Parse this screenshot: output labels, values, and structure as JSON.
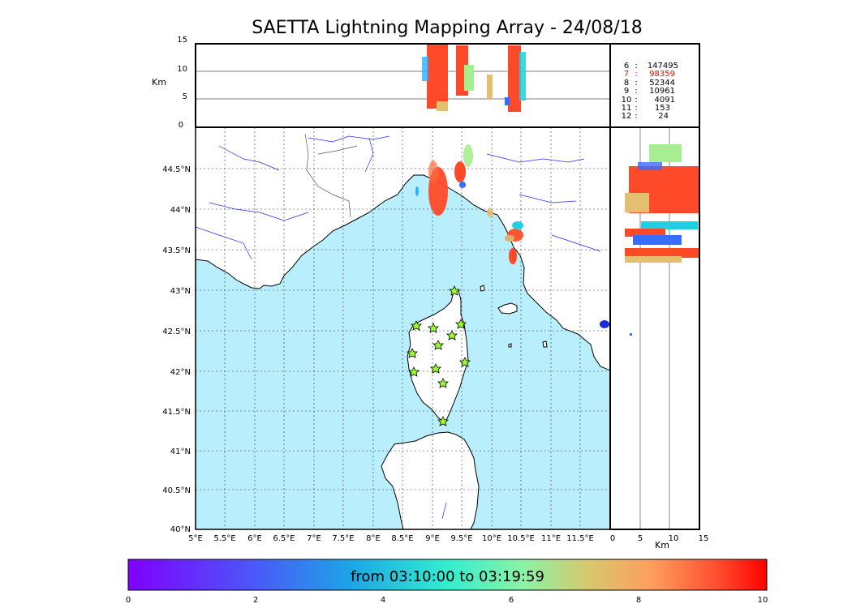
{
  "title": "SAETTA Lightning Mapping Array - 24/08/18",
  "top_panel": {
    "ylabel": "Km",
    "yticks": [
      "15",
      "10",
      "5",
      "0"
    ]
  },
  "side_panel": {
    "xlabel": "Km",
    "xticks": [
      "0",
      "5",
      "10",
      "15"
    ]
  },
  "map": {
    "lat_ticks": [
      "44.5°N",
      "44°N",
      "43.5°N",
      "43°N",
      "42.5°N",
      "42°N",
      "41.5°N",
      "41°N",
      "40.5°N",
      "40°N"
    ],
    "lon_ticks": [
      "5°E",
      "5.5°E",
      "6°E",
      "6.5°E",
      "7°E",
      "7.5°E",
      "8°E",
      "8.5°E",
      "9°E",
      "9.5°E",
      "10°E",
      "10.5°E",
      "11°E",
      "11.5°E"
    ],
    "sea_color": "#b9eefc",
    "station_count": 12
  },
  "legend": {
    "rows": [
      {
        "key": "6",
        "value": "147495",
        "color": "#000000"
      },
      {
        "key": "7",
        "value": "98359",
        "color": "#ff0000"
      },
      {
        "key": "8",
        "value": "52344",
        "color": "#000000"
      },
      {
        "key": "9",
        "value": "10961",
        "color": "#000000"
      },
      {
        "key": "10",
        "value": "4091",
        "color": "#000000"
      },
      {
        "key": "11",
        "value": "153",
        "color": "#000000"
      },
      {
        "key": "12",
        "value": "24",
        "color": "#000000"
      }
    ]
  },
  "colorbar": {
    "label": "from 03:10:00 to 03:19:59",
    "ticks": [
      "0",
      "2",
      "4",
      "6",
      "8",
      "10"
    ],
    "colormap": "rainbow"
  }
}
